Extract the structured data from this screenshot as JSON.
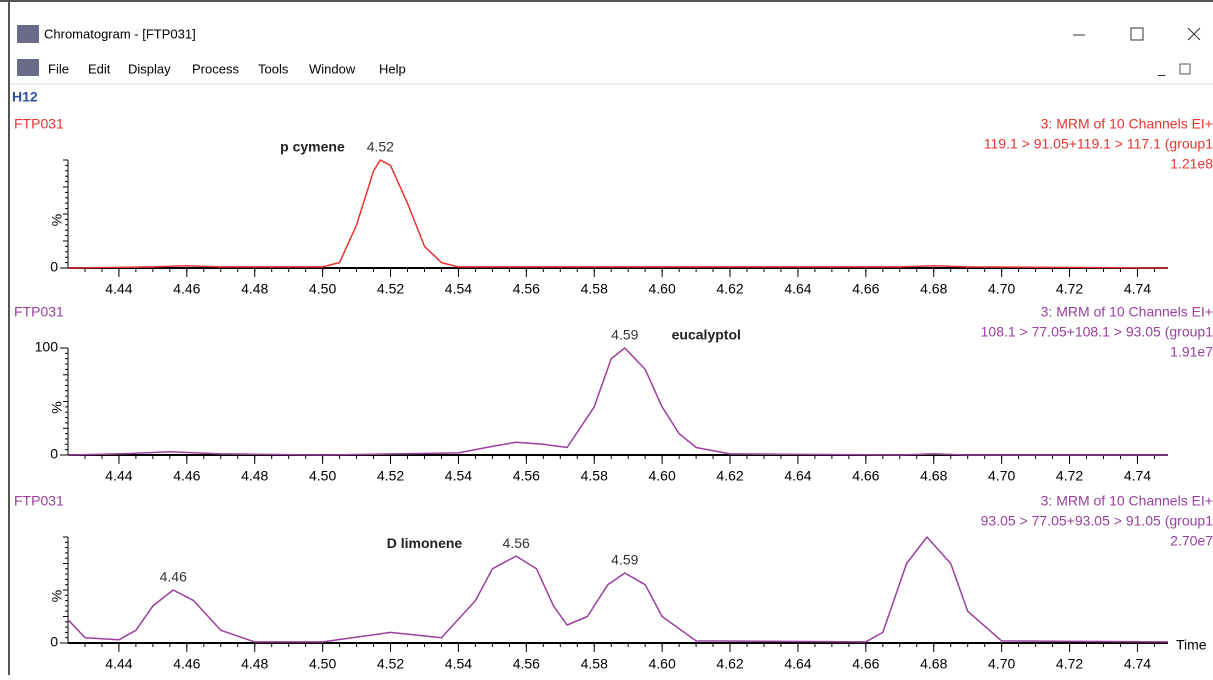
{
  "window": {
    "title": "Chromatogram - [FTP031]",
    "menu": [
      "File",
      "Edit",
      "Display",
      "Process",
      "Tools",
      "Window",
      "Help"
    ],
    "plate": "H12"
  },
  "chart_data": [
    {
      "type": "line",
      "sample": "FTP031",
      "channel": [
        "3: MRM of 10 Channels EI+",
        "119.1 > 91.05+119.1 > 117.1 (group1",
        "1.21e8"
      ],
      "y_label": "%",
      "x": [
        4.425,
        4.45,
        4.46,
        4.47,
        4.5,
        4.505,
        4.51,
        4.515,
        4.517,
        4.52,
        4.525,
        4.53,
        4.535,
        4.54,
        4.67,
        4.68,
        4.69,
        4.749
      ],
      "series": [
        {
          "color": "#e8342f",
          "values": [
            0,
            1,
            2,
            1,
            1,
            5,
            40,
            90,
            100,
            95,
            60,
            20,
            5,
            1,
            1,
            2,
            1,
            0
          ]
        }
      ],
      "annotations": [
        {
          "text": "4.52",
          "x": 4.517,
          "y": 100
        },
        {
          "text": "p cymene",
          "x": 4.497,
          "y": 100
        }
      ],
      "xlim": [
        4.425,
        4.749
      ],
      "ylim": [
        0,
        100
      ],
      "yticks": [
        0
      ],
      "xticks": [
        4.44,
        4.46,
        4.48,
        {
          "value": 4.5,
          "label": "4.50"
        },
        4.52,
        4.54,
        4.56,
        4.58,
        {
          "value": 4.6,
          "label": "4.60"
        },
        4.62,
        4.64,
        4.66,
        4.68,
        {
          "value": 4.7,
          "label": "4.70"
        },
        4.72,
        4.74
      ]
    },
    {
      "type": "line",
      "sample": "FTP031",
      "channel": [
        "3: MRM of 10 Channels EI+",
        "108.1 > 77.05+108.1 > 93.05 (group1",
        "1.91e7"
      ],
      "y_label": "%",
      "x": [
        4.425,
        4.44,
        4.455,
        4.47,
        4.5,
        4.54,
        4.55,
        4.557,
        4.565,
        4.572,
        4.58,
        4.585,
        4.589,
        4.595,
        4.6,
        4.605,
        4.61,
        4.62,
        4.67,
        4.68,
        4.69,
        4.749
      ],
      "series": [
        {
          "color": "#9b3fa0",
          "values": [
            0,
            1,
            3,
            1,
            0,
            2,
            8,
            12,
            10,
            7,
            45,
            90,
            100,
            80,
            45,
            20,
            7,
            1,
            0,
            1,
            0,
            0
          ]
        }
      ],
      "annotations": [
        {
          "text": "4.59",
          "x": 4.589,
          "y": 100
        },
        {
          "text": "eucalyptol",
          "x": 4.613,
          "y": 100
        }
      ],
      "xlim": [
        4.425,
        4.749
      ],
      "ylim": [
        0,
        100
      ],
      "yticks": [
        0,
        100
      ],
      "xticks": [
        4.44,
        4.46,
        4.48,
        {
          "value": 4.5,
          "label": "4.50"
        },
        4.52,
        4.54,
        4.56,
        4.58,
        {
          "value": 4.6,
          "label": "4.60"
        },
        4.62,
        4.64,
        4.66,
        4.68,
        {
          "value": 4.7,
          "label": "4.70"
        },
        4.72,
        4.74
      ]
    },
    {
      "type": "line",
      "sample": "FTP031",
      "channel": [
        "3: MRM of 10 Channels EI+",
        "93.05 > 77.05+93.05 > 91.05 (group1",
        "2.70e7"
      ],
      "y_label": "%",
      "x_label": "Time",
      "x": [
        4.425,
        4.43,
        4.44,
        4.445,
        4.45,
        4.456,
        4.462,
        4.47,
        4.48,
        4.5,
        4.52,
        4.535,
        4.545,
        4.55,
        4.557,
        4.563,
        4.568,
        4.572,
        4.578,
        4.584,
        4.589,
        4.595,
        4.6,
        4.61,
        4.66,
        4.665,
        4.672,
        4.678,
        4.685,
        4.69,
        4.7,
        4.749
      ],
      "series": [
        {
          "color": "#9b3fa0",
          "values": [
            22,
            5,
            3,
            12,
            35,
            50,
            40,
            12,
            1,
            1,
            10,
            5,
            40,
            70,
            82,
            70,
            35,
            17,
            25,
            55,
            66,
            55,
            25,
            2,
            1,
            10,
            75,
            100,
            75,
            30,
            2,
            1
          ]
        }
      ],
      "annotations": [
        {
          "text": "4.46",
          "x": 4.456,
          "y": 50
        },
        {
          "text": "4.56",
          "x": 4.557,
          "y": 82
        },
        {
          "text": "4.59",
          "x": 4.589,
          "y": 66
        },
        {
          "text": "D limonene",
          "x": 4.53,
          "y": 82
        }
      ],
      "xlim": [
        4.425,
        4.749
      ],
      "ylim": [
        0,
        100
      ],
      "yticks": [
        0
      ],
      "xticks": [
        4.44,
        4.46,
        4.48,
        {
          "value": 4.5,
          "label": "4.50"
        },
        4.52,
        4.54,
        4.56,
        4.58,
        {
          "value": 4.6,
          "label": "4.60"
        },
        4.62,
        4.64,
        4.66,
        4.68,
        {
          "value": 4.7,
          "label": "4.70"
        },
        4.72,
        4.74
      ]
    }
  ]
}
